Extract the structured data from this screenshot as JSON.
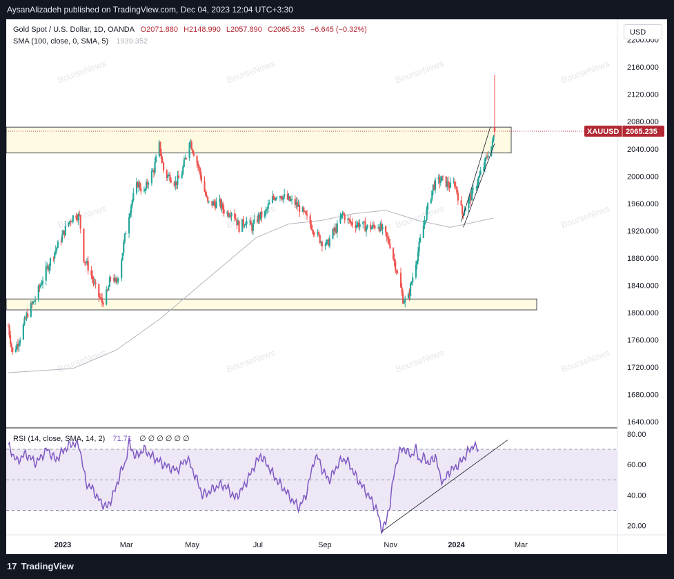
{
  "header": {
    "publisher_line": "AysanAlizadeh published on TradingView.com, Dec 04, 2023 12:04 UTC+3:30"
  },
  "legend": {
    "symbol": "Gold Spot / U.S. Dollar, 1D, OANDA",
    "open": "O2071.880",
    "high": "H2148.990",
    "low": "L2057.890",
    "close": "C2065.235",
    "change": "−6.645 (−0.32%)",
    "sma_label": "SMA (100, close, 0, SMA, 5)",
    "sma_value": "1939.352",
    "rsi_label": "RSI (14, close, SMA, 14, 2)",
    "rsi_value": "71.71",
    "rsi_extras": "∅ ∅ ∅ ∅ ∅ ∅"
  },
  "currency_button": "USD",
  "price_tag": {
    "symbol": "XAUUSD",
    "price": "2065.235"
  },
  "watermark": "BourseNews",
  "footer": {
    "brand": "TradingView",
    "brand_mark": "17"
  },
  "colors": {
    "up": "#26a69a",
    "down": "#ef5350",
    "zone_fill": "#fffbe3",
    "sma": "#b2b5be",
    "rsi_line": "#7e57c2",
    "rsi_band": "#ede7f6",
    "price_tag": "#b22833"
  },
  "chart_data": [
    {
      "type": "candlestick",
      "title": "Gold Spot / U.S. Dollar, 1D, OANDA",
      "x_ticks": [
        "2023",
        "Mar",
        "May",
        "Jul",
        "Sep",
        "Nov",
        "2024",
        "Mar"
      ],
      "y_ticks": [
        "1640.000",
        "1680.000",
        "1720.000",
        "1760.000",
        "1800.000",
        "1840.000",
        "1880.000",
        "1920.000",
        "1960.000",
        "2000.000",
        "2040.000",
        "2080.000",
        "2120.000",
        "2160.000",
        "2200.000"
      ],
      "ylim": [
        1631,
        2230
      ],
      "anchors": [
        [
          0,
          1780
        ],
        [
          4,
          1740
        ],
        [
          10,
          1760
        ],
        [
          18,
          1800
        ],
        [
          25,
          1820
        ],
        [
          32,
          1850
        ],
        [
          40,
          1880
        ],
        [
          48,
          1905
        ],
        [
          55,
          1930
        ],
        [
          62,
          1945
        ],
        [
          66,
          1940
        ],
        [
          70,
          1880
        ],
        [
          76,
          1860
        ],
        [
          82,
          1830
        ],
        [
          87,
          1815
        ],
        [
          92,
          1830
        ],
        [
          96,
          1860
        ],
        [
          100,
          1840
        ],
        [
          105,
          1880
        ],
        [
          110,
          1930
        ],
        [
          114,
          1960
        ],
        [
          120,
          1990
        ],
        [
          126,
          1975
        ],
        [
          130,
          1995
        ],
        [
          135,
          2010
        ],
        [
          140,
          2045
        ],
        [
          145,
          2000
        ],
        [
          150,
          2000
        ],
        [
          155,
          1990
        ],
        [
          160,
          2000
        ],
        [
          165,
          2030
        ],
        [
          168,
          2055
        ],
        [
          172,
          2035
        ],
        [
          176,
          2015
        ],
        [
          180,
          1990
        ],
        [
          185,
          1960
        ],
        [
          190,
          1960
        ],
        [
          196,
          1960
        ],
        [
          202,
          1945
        ],
        [
          208,
          1950
        ],
        [
          214,
          1925
        ],
        [
          220,
          1935
        ],
        [
          226,
          1925
        ],
        [
          232,
          1940
        ],
        [
          238,
          1945
        ],
        [
          244,
          1965
        ],
        [
          250,
          1975
        ],
        [
          255,
          1970
        ],
        [
          260,
          1965
        ],
        [
          266,
          1960
        ],
        [
          272,
          1950
        ],
        [
          278,
          1935
        ],
        [
          284,
          1920
        ],
        [
          290,
          1905
        ],
        [
          296,
          1900
        ],
        [
          300,
          1915
        ],
        [
          305,
          1925
        ],
        [
          310,
          1945
        ],
        [
          315,
          1935
        ],
        [
          320,
          1930
        ],
        [
          326,
          1930
        ],
        [
          332,
          1925
        ],
        [
          338,
          1925
        ],
        [
          342,
          1930
        ],
        [
          348,
          1918
        ],
        [
          354,
          1900
        ],
        [
          358,
          1875
        ],
        [
          362,
          1850
        ],
        [
          366,
          1820
        ],
        [
          370,
          1815
        ],
        [
          374,
          1845
        ],
        [
          378,
          1875
        ],
        [
          382,
          1905
        ],
        [
          386,
          1935
        ],
        [
          390,
          1960
        ],
        [
          394,
          1985
        ],
        [
          398,
          1992
        ],
        [
          402,
          1995
        ],
        [
          406,
          1990
        ],
        [
          410,
          1985
        ],
        [
          414,
          1990
        ],
        [
          418,
          1965
        ],
        [
          421,
          1945
        ],
        [
          425,
          1960
        ],
        [
          429,
          1970
        ],
        [
          433,
          1985
        ],
        [
          437,
          2000
        ],
        [
          441,
          2015
        ],
        [
          445,
          2035
        ],
        [
          449,
          2047
        ],
        [
          451,
          2070
        ]
      ],
      "spike": {
        "high": 2148.99,
        "open": 2071.88,
        "close": 2065.235,
        "low": 2057.89
      },
      "sma_100": [
        [
          0,
          1712
        ],
        [
          60,
          1718
        ],
        [
          100,
          1745
        ],
        [
          140,
          1790
        ],
        [
          170,
          1830
        ],
        [
          200,
          1870
        ],
        [
          230,
          1910
        ],
        [
          260,
          1930
        ],
        [
          290,
          1935
        ],
        [
          320,
          1945
        ],
        [
          350,
          1950
        ],
        [
          380,
          1935
        ],
        [
          410,
          1925
        ],
        [
          451,
          1939
        ]
      ],
      "zones": [
        {
          "from": 2034,
          "to": 2072
        },
        {
          "from": 1804,
          "to": 1820
        }
      ],
      "trendline": [
        [
          422,
          1925
        ],
        [
          451,
          2048
        ]
      ]
    },
    {
      "type": "line",
      "title": "RSI (14, close, SMA, 14, 2)",
      "y_ticks": [
        "20.00",
        "40.00",
        "60.00",
        "80.00"
      ],
      "ylim": [
        14,
        84
      ],
      "band": [
        30,
        70
      ],
      "mid": 50,
      "series": [
        [
          0,
          72
        ],
        [
          8,
          62
        ],
        [
          16,
          67
        ],
        [
          26,
          61
        ],
        [
          36,
          70
        ],
        [
          44,
          63
        ],
        [
          52,
          70
        ],
        [
          60,
          74
        ],
        [
          66,
          72
        ],
        [
          72,
          48
        ],
        [
          78,
          44
        ],
        [
          86,
          35
        ],
        [
          92,
          32
        ],
        [
          100,
          45
        ],
        [
          104,
          55
        ],
        [
          108,
          60
        ],
        [
          112,
          74
        ],
        [
          118,
          65
        ],
        [
          126,
          70
        ],
        [
          132,
          66
        ],
        [
          138,
          63
        ],
        [
          144,
          60
        ],
        [
          150,
          58
        ],
        [
          156,
          56
        ],
        [
          162,
          61
        ],
        [
          166,
          64
        ],
        [
          170,
          58
        ],
        [
          176,
          48
        ],
        [
          180,
          40
        ],
        [
          186,
          42
        ],
        [
          192,
          45
        ],
        [
          198,
          47
        ],
        [
          204,
          44
        ],
        [
          210,
          38
        ],
        [
          216,
          43
        ],
        [
          222,
          50
        ],
        [
          228,
          59
        ],
        [
          234,
          66
        ],
        [
          240,
          60
        ],
        [
          246,
          53
        ],
        [
          252,
          47
        ],
        [
          258,
          42
        ],
        [
          264,
          36
        ],
        [
          270,
          32
        ],
        [
          276,
          40
        ],
        [
          280,
          52
        ],
        [
          284,
          64
        ],
        [
          288,
          64
        ],
        [
          292,
          55
        ],
        [
          298,
          50
        ],
        [
          304,
          58
        ],
        [
          310,
          64
        ],
        [
          316,
          61
        ],
        [
          320,
          55
        ],
        [
          326,
          48
        ],
        [
          332,
          42
        ],
        [
          338,
          35
        ],
        [
          342,
          30
        ],
        [
          346,
          18
        ],
        [
          350,
          21
        ],
        [
          354,
          35
        ],
        [
          358,
          55
        ],
        [
          362,
          67
        ],
        [
          366,
          71
        ],
        [
          370,
          68
        ],
        [
          374,
          66
        ],
        [
          378,
          70
        ],
        [
          382,
          62
        ],
        [
          386,
          65
        ],
        [
          390,
          60
        ],
        [
          396,
          66
        ],
        [
          400,
          53
        ],
        [
          404,
          48
        ],
        [
          408,
          55
        ],
        [
          412,
          57
        ],
        [
          416,
          59
        ],
        [
          420,
          62
        ],
        [
          424,
          66
        ],
        [
          428,
          70
        ],
        [
          432,
          73
        ],
        [
          434,
          70
        ],
        [
          436,
          71
        ]
      ],
      "trendline": [
        [
          346,
          16
        ],
        [
          451,
          76
        ]
      ]
    }
  ]
}
